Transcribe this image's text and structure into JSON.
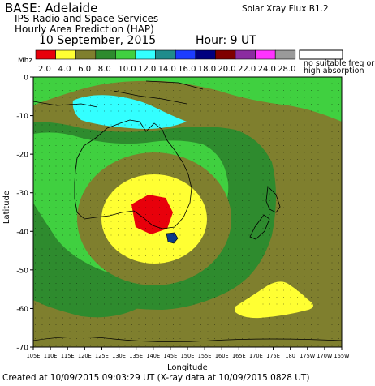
{
  "header": {
    "base": "BASE: Adelaide",
    "xray": "Solar Xray Flux B1.2",
    "org": "IPS Radio and Space Services",
    "product": "Hourly Area Prediction (HAP)",
    "date": "10 September, 2015",
    "hour": "Hour:  9 UT"
  },
  "legend": {
    "unit": "Mhz",
    "items": [
      {
        "label": "2.0",
        "color": "#e8000b"
      },
      {
        "label": "4.0",
        "color": "#ffff33"
      },
      {
        "label": "6.0",
        "color": "#7f7f2e"
      },
      {
        "label": "8.0",
        "color": "#2e8b2e"
      },
      {
        "label": "10.0",
        "color": "#40d040"
      },
      {
        "label": "12.0",
        "color": "#33ffff"
      },
      {
        "label": "14.0",
        "color": "#1f8c8c"
      },
      {
        "label": "16.0",
        "color": "#1c3cff"
      },
      {
        "label": "18.0",
        "color": "#00007f"
      },
      {
        "label": "20.0",
        "color": "#7f0000"
      },
      {
        "label": "22.0",
        "color": "#8b2ca0"
      },
      {
        "label": "24.0",
        "color": "#ff33ff"
      },
      {
        "label": "28.0",
        "color": "#9a9a9a"
      }
    ],
    "no_freq_label": "no suitable freq or high absorption"
  },
  "axes": {
    "ylabel": "Latitude",
    "xlabel": "Longitude",
    "lat_ticks": [
      "0",
      "-10",
      "-20",
      "-30",
      "-40",
      "-50",
      "-60",
      "-70"
    ],
    "lon_ticks": [
      "105E",
      "110E",
      "115E",
      "120E",
      "125E",
      "130E",
      "135E",
      "140E",
      "145E",
      "150E",
      "155E",
      "160E",
      "165E",
      "170E",
      "175E",
      "180",
      "175W",
      "170W",
      "165W"
    ]
  },
  "footer": "Created at 10/09/2015 09:03:29 UT (X-ray data at 10/09/2015 0828 UT)"
}
